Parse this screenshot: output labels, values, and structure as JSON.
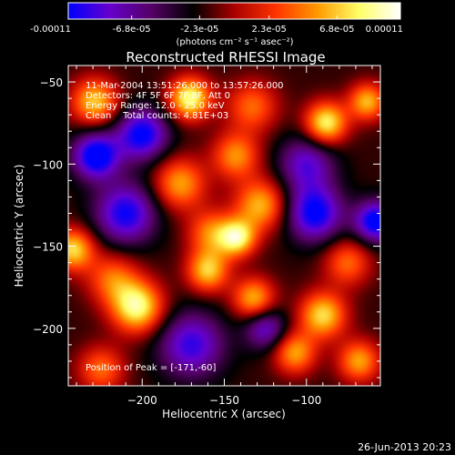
{
  "colorbar": {
    "tick_labels": [
      "-0.00011",
      "-6.8e-05",
      "-2.3e-05",
      "2.3e-05",
      "6.8e-05",
      "0.00011"
    ],
    "tick_values": [
      -0.00011,
      -6.8e-05,
      -2.3e-05,
      2.3e-05,
      6.8e-05,
      0.00011
    ],
    "range": [
      -0.00011,
      0.00011
    ],
    "units": "(photons cm⁻² s⁻¹ asec⁻²)",
    "colors": [
      "#0000ff",
      "#6600cc",
      "#550066",
      "#000000",
      "#aa0000",
      "#ff3300",
      "#ff9900",
      "#ffff66",
      "#ffffff"
    ]
  },
  "chart_data": {
    "type": "heatmap",
    "title": "Reconstructed RHESSI Image",
    "xlabel": "Heliocentric X (arcsec)",
    "ylabel": "Heliocentric Y (arcsec)",
    "xlim": [
      -245,
      -55
    ],
    "ylim": [
      -235,
      -40
    ],
    "xticks": [
      -200,
      -150,
      -100
    ],
    "yticks": [
      -50,
      -100,
      -150,
      -200
    ],
    "xtick_labels": [
      "−200",
      "−150",
      "−100"
    ],
    "ytick_labels": [
      "−50",
      "−100",
      "−150",
      "−200"
    ],
    "annotations": [
      "11-Mar-2004 13:51:26.000 to 13:57:26.000",
      "Detectors: 4F 5F 6F 7F 8F, Att 0",
      "Energy Range: 12.0 - 25.0 keV",
      "Clean    Total counts: 4.81E+03"
    ],
    "peak_label": "Position of Peak = [-171,-60]",
    "peak": {
      "x": -171,
      "y": -60
    },
    "sources": [
      {
        "x": -229,
        "y": -62,
        "amp": 0.8,
        "s": 10
      },
      {
        "x": -171,
        "y": -60,
        "amp": 1.0,
        "s": 9
      },
      {
        "x": -133,
        "y": -65,
        "amp": 0.55,
        "s": 11
      },
      {
        "x": -88,
        "y": -75,
        "amp": 0.95,
        "s": 9
      },
      {
        "x": -63,
        "y": -62,
        "amp": 0.75,
        "s": 8
      },
      {
        "x": -143,
        "y": -95,
        "amp": 0.65,
        "s": 10
      },
      {
        "x": -177,
        "y": -112,
        "amp": 0.7,
        "s": 11
      },
      {
        "x": -128,
        "y": -125,
        "amp": 0.75,
        "s": 11
      },
      {
        "x": -158,
        "y": -142,
        "amp": 0.6,
        "s": 10
      },
      {
        "x": -142,
        "y": -145,
        "amp": 0.9,
        "s": 8
      },
      {
        "x": -75,
        "y": -160,
        "amp": 0.55,
        "s": 10
      },
      {
        "x": -242,
        "y": -152,
        "amp": 0.85,
        "s": 9
      },
      {
        "x": -218,
        "y": -170,
        "amp": 0.55,
        "s": 11
      },
      {
        "x": -203,
        "y": -187,
        "amp": 1.0,
        "s": 11
      },
      {
        "x": -160,
        "y": -165,
        "amp": 0.8,
        "s": 9
      },
      {
        "x": -132,
        "y": -182,
        "amp": 0.75,
        "s": 9
      },
      {
        "x": -90,
        "y": -192,
        "amp": 0.85,
        "s": 10
      },
      {
        "x": -107,
        "y": -215,
        "amp": 0.7,
        "s": 9
      },
      {
        "x": -68,
        "y": -220,
        "amp": 0.7,
        "s": 9
      },
      {
        "x": -225,
        "y": -225,
        "amp": 0.55,
        "s": 10
      },
      {
        "x": -200,
        "y": -82,
        "amp": -0.85,
        "s": 11
      },
      {
        "x": -228,
        "y": -95,
        "amp": -0.95,
        "s": 10
      },
      {
        "x": -95,
        "y": -130,
        "amp": -0.85,
        "s": 12
      },
      {
        "x": -58,
        "y": -135,
        "amp": -0.9,
        "s": 9
      },
      {
        "x": -210,
        "y": -130,
        "amp": -0.8,
        "s": 13
      },
      {
        "x": -100,
        "y": -100,
        "amp": -0.6,
        "s": 12
      },
      {
        "x": -170,
        "y": -210,
        "amp": -0.7,
        "s": 14
      },
      {
        "x": -125,
        "y": -200,
        "amp": -0.6,
        "s": 9
      }
    ]
  },
  "footer": {
    "timestamp": "26-Jun-2013 20:23"
  }
}
